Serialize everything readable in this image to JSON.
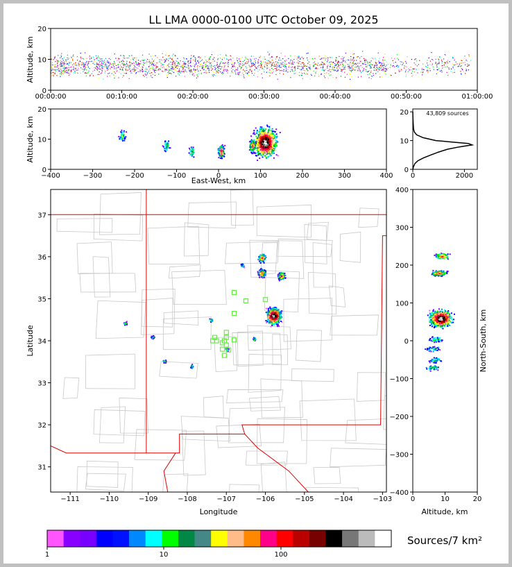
{
  "title": "LL LMA 0000-0100 UTC October 09, 2025",
  "colorbar": {
    "label": "Sources/7 km²",
    "ticks": [
      "1",
      "10",
      "100"
    ],
    "colors": [
      "#ff55ff",
      "#8800ff",
      "#7700ff",
      "#0000ff",
      "#0011ff",
      "#0088ff",
      "#00ffff",
      "#00ff00",
      "#008844",
      "#448888",
      "#ffff00",
      "#ffbb88",
      "#ff8800",
      "#ff0088",
      "#ff0000",
      "#bb0000",
      "#770000",
      "#000000",
      "#777777",
      "#bbbbbb",
      "#ffffff"
    ]
  },
  "chart_data": [
    {
      "type": "scatter",
      "name": "time-height",
      "ylabel": "Altitude, km",
      "xlim": [
        "00:00:00",
        "01:00:00"
      ],
      "ylim": [
        0,
        20
      ],
      "x_ticks": [
        "00:00:00",
        "00:10:00",
        "00:20:00",
        "00:30:00",
        "00:40:00",
        "00:50:00",
        "01:00:00"
      ],
      "y_ticks": [
        "0",
        "10",
        "20"
      ]
    },
    {
      "type": "scatter",
      "name": "east-west-altitude",
      "xlabel": "East-West, km",
      "ylabel": "Altitude, km",
      "xlim": [
        -400,
        400
      ],
      "ylim": [
        0,
        20
      ],
      "x_ticks": [
        "−400",
        "−300",
        "−200",
        "−100",
        "0",
        "100",
        "200",
        "300",
        "400"
      ],
      "y_ticks": [
        "0",
        "10",
        "20"
      ],
      "clusters": [
        {
          "x": 110,
          "z": 9,
          "density": "high"
        },
        {
          "x": 80,
          "z": 8,
          "density": "medium"
        },
        {
          "x": 5,
          "z": 6,
          "density": "medium"
        },
        {
          "x": -65,
          "z": 6,
          "density": "low"
        },
        {
          "x": -125,
          "z": 8,
          "density": "low"
        },
        {
          "x": -230,
          "z": 11,
          "density": "low"
        }
      ]
    },
    {
      "type": "line",
      "name": "altitude-histogram",
      "annotation": "43,809 sources",
      "xlim": [
        0,
        2500
      ],
      "ylim": [
        0,
        21
      ],
      "x_ticks": [
        "0",
        "2000"
      ],
      "y_ticks": [
        "0",
        "10",
        "20"
      ],
      "points": [
        [
          0,
          0
        ],
        [
          30,
          1
        ],
        [
          80,
          2
        ],
        [
          200,
          3
        ],
        [
          420,
          4
        ],
        [
          700,
          5
        ],
        [
          1000,
          6
        ],
        [
          1350,
          7
        ],
        [
          1800,
          7.8
        ],
        [
          2300,
          8.5
        ],
        [
          2150,
          9
        ],
        [
          1500,
          9.5
        ],
        [
          900,
          10
        ],
        [
          400,
          11
        ],
        [
          150,
          12
        ],
        [
          60,
          13
        ],
        [
          30,
          14
        ],
        [
          15,
          16
        ],
        [
          5,
          18
        ],
        [
          0,
          20
        ]
      ]
    },
    {
      "type": "heatmap",
      "name": "plan-view",
      "xlabel": "Longitude",
      "ylabel": "Latitude",
      "xlim": [
        -111.5,
        -102.9
      ],
      "ylim": [
        30.4,
        37.6
      ],
      "x_ticks": [
        "−111",
        "−110",
        "−109",
        "−108",
        "−107",
        "−106",
        "−105",
        "−104",
        "−103"
      ],
      "y_ticks": [
        "31",
        "32",
        "33",
        "34",
        "35",
        "36",
        "37"
      ],
      "clusters": [
        {
          "lon": -105.8,
          "lat": 34.6,
          "density": "high"
        },
        {
          "lon": -106.1,
          "lat": 35.62,
          "density": "medium"
        },
        {
          "lon": -105.6,
          "lat": 35.55,
          "density": "medium"
        },
        {
          "lon": -106.1,
          "lat": 35.98,
          "density": "medium"
        },
        {
          "lon": -107.0,
          "lat": 33.8,
          "density": "low"
        },
        {
          "lon": -107.4,
          "lat": 34.5,
          "density": "low"
        },
        {
          "lon": -106.3,
          "lat": 34.05,
          "density": "low"
        },
        {
          "lon": -109.6,
          "lat": 34.43,
          "density": "low"
        },
        {
          "lon": -108.6,
          "lat": 33.52,
          "density": "low"
        },
        {
          "lon": -107.9,
          "lat": 33.4,
          "density": "low"
        },
        {
          "lon": -106.6,
          "lat": 35.8,
          "density": "low"
        },
        {
          "lon": -108.9,
          "lat": 34.1,
          "density": "low"
        }
      ],
      "stations": [
        [
          -106.8,
          35.15
        ],
        [
          -106.5,
          34.95
        ],
        [
          -106.0,
          34.98
        ],
        [
          -106.8,
          34.65
        ],
        [
          -107.0,
          34.2
        ],
        [
          -107.0,
          34.08
        ],
        [
          -106.8,
          34.02
        ],
        [
          -107.3,
          34.08
        ],
        [
          -107.35,
          34.0
        ],
        [
          -107.1,
          33.95
        ],
        [
          -107.0,
          33.9
        ],
        [
          -106.95,
          33.78
        ],
        [
          -107.05,
          33.65
        ],
        [
          -107.1,
          33.8
        ],
        [
          -107.25,
          34.0
        ],
        [
          -107.05,
          34.0
        ]
      ]
    },
    {
      "type": "scatter",
      "name": "north-south-altitude",
      "xlabel": "Altitude, km",
      "ylabel": "North-South, km",
      "xlim": [
        0,
        20
      ],
      "ylim": [
        -400,
        400
      ],
      "x_ticks": [
        "0",
        "10",
        "20"
      ],
      "y_ticks": [
        "−400",
        "−300",
        "−200",
        "−100",
        "0",
        "100",
        "200",
        "300",
        "400"
      ],
      "clusters": [
        {
          "z": 8.5,
          "y": 60,
          "density": "high"
        },
        {
          "z": 8,
          "y": 180,
          "density": "medium"
        },
        {
          "z": 9,
          "y": 225,
          "density": "medium"
        },
        {
          "z": 7,
          "y": 5,
          "density": "low"
        },
        {
          "z": 6,
          "y": -20,
          "density": "low"
        },
        {
          "z": 6,
          "y": -70,
          "density": "low"
        },
        {
          "z": 7,
          "y": -50,
          "density": "low"
        }
      ]
    }
  ]
}
